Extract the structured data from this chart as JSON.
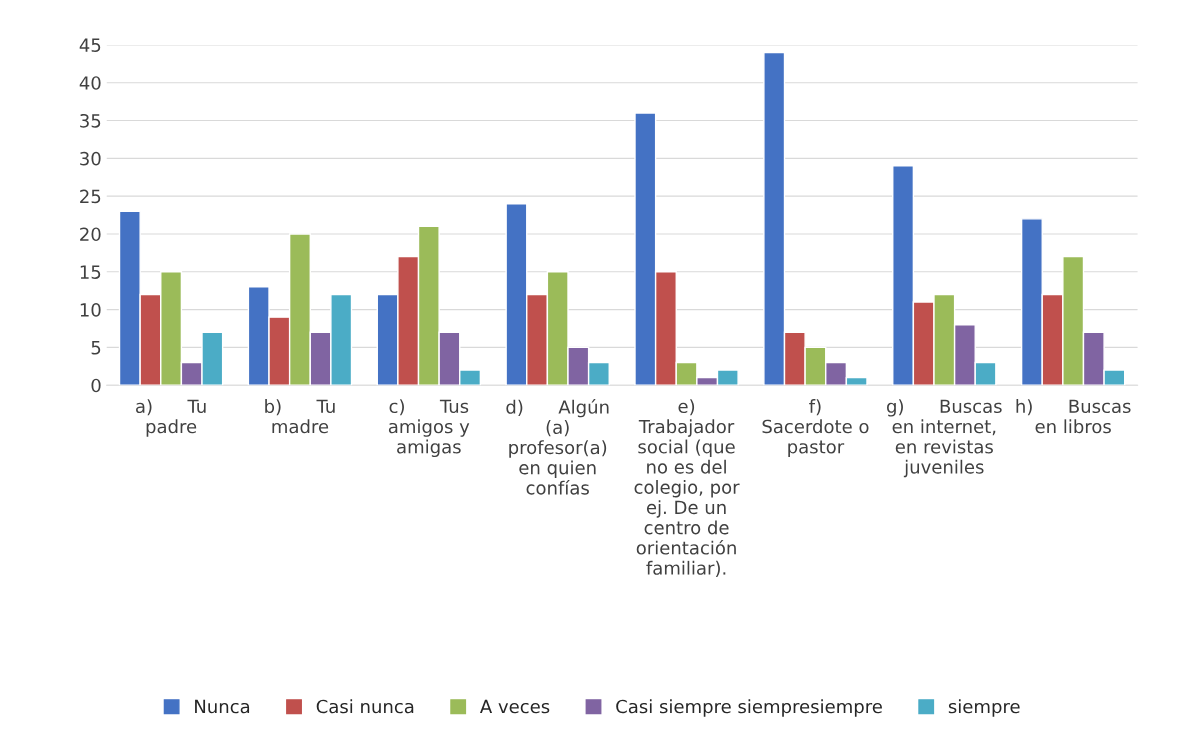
{
  "chart_data": {
    "type": "bar",
    "categories": [
      "a)      Tu\npadre",
      "b)      Tu\nmadre",
      "c)      Tus\namigos y\namigas",
      "d)      Algún\n(a)\nprofesor(a)\nen quien\nconfías",
      "e)\nTrabajador\nsocial (que\nno es del\ncolegio, por\nej. De un\ncentro de\norientación\nfamiliar).",
      "f)\nSacerdote o\npastor",
      "g)      Buscas\nen internet,\nen revistas\njuveniles",
      "h)      Buscas\nen libros"
    ],
    "series": [
      {
        "name": "Nunca",
        "color": "#4472c4",
        "values": [
          23,
          13,
          12,
          24,
          36,
          44,
          29,
          22
        ]
      },
      {
        "name": "Casi nunca",
        "color": "#c0504d",
        "values": [
          12,
          9,
          17,
          12,
          15,
          7,
          11,
          12
        ]
      },
      {
        "name": "A veces",
        "color": "#9bbb59",
        "values": [
          15,
          20,
          21,
          15,
          3,
          5,
          12,
          17
        ]
      },
      {
        "name": "Casi siempre siempresiempre",
        "color": "#8064a2",
        "values": [
          3,
          7,
          7,
          5,
          1,
          3,
          8,
          7
        ]
      },
      {
        "name": "siempre",
        "color": "#4bacc6",
        "values": [
          7,
          12,
          2,
          3,
          2,
          1,
          3,
          2
        ]
      }
    ],
    "ylim": [
      0,
      45
    ],
    "yticks": [
      0,
      5,
      10,
      15,
      20,
      25,
      30,
      35,
      40,
      45
    ],
    "grid": "y",
    "legend": "bottom"
  }
}
